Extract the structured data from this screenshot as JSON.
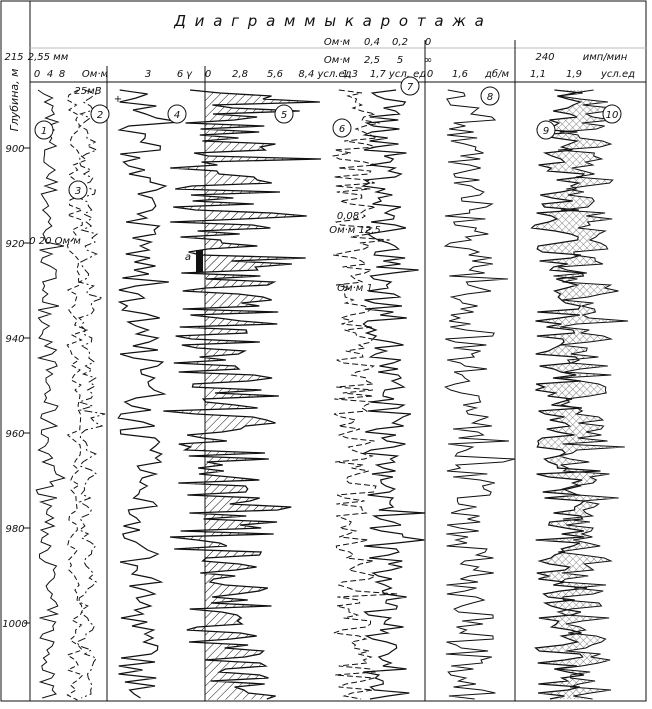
{
  "title": "Д и а г р а м м ы     к а р о т а ж а",
  "depth_axis": {
    "label": "Глубина, м",
    "ticks": [
      900,
      920,
      940,
      960,
      980,
      1000
    ]
  },
  "header": {
    "row1": [
      "Ом·м",
      "0,4",
      "0,2",
      "0"
    ],
    "row2": [
      "Ом·м",
      "2,5",
      "5",
      "∞"
    ],
    "row3": [
      "215",
      "2,55 мм",
      "240",
      "имп/мин"
    ],
    "row4": [
      "0",
      "4",
      "8",
      "Ом·м",
      "3",
      "6",
      "γ",
      "0",
      "2,8",
      "5,6",
      "8,4 усл.ед",
      "1,3",
      "1,7 усл. ед",
      "0",
      "1,6",
      "дб/м",
      "1,1",
      "1,9",
      "усл.ед"
    ],
    "mv": "25мВ"
  },
  "annotations": [
    "0  20  Ом·м",
    "0,08",
    "Ом·м  12,5",
    "Ом·м  1",
    "a",
    "+"
  ],
  "curve_numbers": [
    "1",
    "2",
    "3",
    "4",
    "5",
    "6",
    "7",
    "8",
    "9",
    "10"
  ]
}
